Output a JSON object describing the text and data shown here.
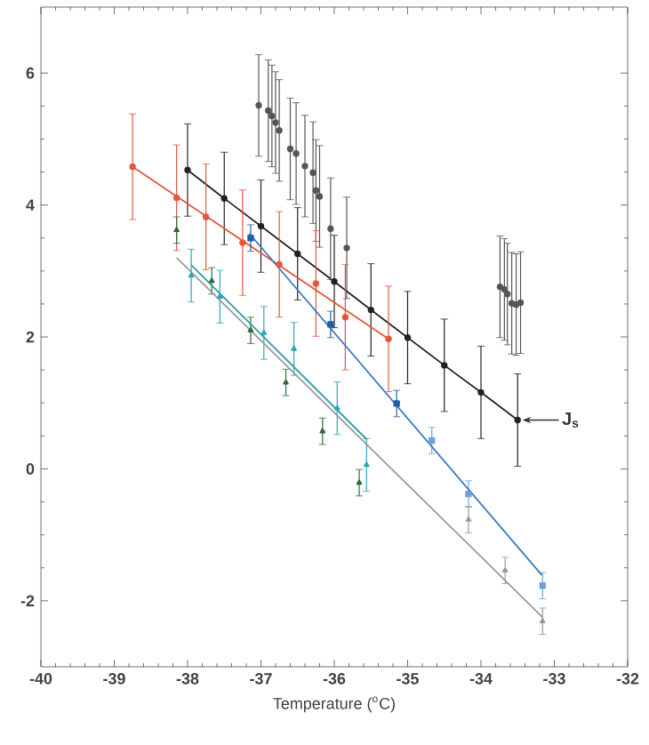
{
  "chart_data": {
    "type": "scatter",
    "xlabel": "Temperature ($^{o}$C)",
    "xlim": [
      -40,
      -32
    ],
    "xticks": [
      -40,
      -39,
      -38,
      -37,
      -36,
      -35,
      -34,
      -33,
      -32
    ],
    "ylim": [
      -3,
      7
    ],
    "yticks": [
      -2,
      0,
      2,
      4,
      6
    ],
    "line_style": "solid",
    "annotations": [
      {
        "text": "J$_{s}$",
        "x": -33.5,
        "y": 0.74
      }
    ],
    "series": [
      {
        "type": "line",
        "marker": "circle",
        "color": "#222222",
        "x": [
          -38.0,
          -37.5,
          -37.0,
          -36.5,
          -36.0,
          -35.5,
          -35.0,
          -34.5,
          -34.0,
          -33.5
        ],
        "values": [
          4.53,
          4.1,
          3.68,
          3.26,
          2.84,
          2.41,
          1.99,
          1.57,
          1.16,
          0.74
        ],
        "errors": [
          0.7,
          0.7,
          0.7,
          0.7,
          0.7,
          0.7,
          0.7,
          0.7,
          0.7,
          0.7
        ]
      },
      {
        "type": "scatter",
        "marker": "circle",
        "color": "#555555",
        "x": [
          -37.03,
          -36.9,
          -36.85,
          -36.8,
          -36.75,
          -36.6,
          -36.52,
          -36.4,
          -36.29,
          -36.25,
          -36.2,
          -36.05,
          -35.83,
          -33.74,
          -33.68,
          -33.64,
          -33.58,
          -33.52,
          -33.46
        ],
        "values": [
          5.51,
          5.43,
          5.35,
          5.25,
          5.13,
          4.85,
          4.78,
          4.59,
          4.49,
          4.22,
          4.13,
          3.64,
          3.35,
          2.76,
          2.72,
          2.65,
          2.51,
          2.49,
          2.52
        ],
        "errors": [
          0.77,
          0.77,
          0.77,
          0.77,
          0.77,
          0.77,
          0.77,
          0.77,
          0.77,
          0.77,
          0.77,
          0.77,
          0.77,
          0.77,
          0.77,
          0.77,
          0.77,
          0.77,
          0.77
        ]
      },
      {
        "type": "scatter",
        "marker": "circle",
        "color": "#e4573d",
        "x": [
          -38.75,
          -38.15,
          -37.75,
          -37.25,
          -36.75,
          -36.25,
          -35.85,
          -35.26
        ],
        "values": [
          4.58,
          4.11,
          3.82,
          3.43,
          3.1,
          2.81,
          2.3,
          1.97
        ],
        "errors": [
          0.8,
          0.8,
          0.8,
          0.8,
          0.8,
          0.8,
          0.8,
          0.8
        ]
      },
      {
        "type": "line",
        "marker": "none",
        "color": "#e4573d",
        "x": [
          -38.75,
          -35.26
        ],
        "values": [
          4.58,
          1.97
        ]
      },
      {
        "type": "scatter",
        "marker": "square",
        "color": "#1f5fa8",
        "x": [
          -37.14,
          -36.05,
          -35.15
        ],
        "values": [
          3.5,
          2.19,
          0.99
        ],
        "errors": [
          0.2,
          0.2,
          0.2
        ]
      },
      {
        "type": "scatter",
        "marker": "square",
        "color": "#6fa3d8",
        "x": [
          -34.67,
          -34.17,
          -33.16
        ],
        "values": [
          0.43,
          -0.38,
          -1.77
        ],
        "errors": [
          0.2,
          0.2,
          0.2
        ]
      },
      {
        "type": "line",
        "marker": "none",
        "color": "#3a78bf",
        "x": [
          -37.16,
          -33.17
        ],
        "values": [
          3.57,
          -1.61
        ]
      },
      {
        "type": "scatter",
        "marker": "triangle",
        "color": "#2e6b3a",
        "x": [
          -38.15,
          -37.67,
          -37.14,
          -36.66,
          -36.16,
          -35.66
        ],
        "values": [
          3.62,
          2.85,
          2.1,
          1.31,
          0.57,
          -0.21
        ],
        "errors": [
          0.2,
          0.2,
          0.2,
          0.2,
          0.2,
          0.2
        ]
      },
      {
        "type": "scatter",
        "marker": "triangle",
        "color": "#2aa7b8",
        "x": [
          -37.95,
          -37.56,
          -36.96,
          -36.55,
          -35.96,
          -35.56
        ],
        "values": [
          2.93,
          2.61,
          2.06,
          1.82,
          0.92,
          0.06
        ],
        "errors": [
          0.4,
          0.4,
          0.4,
          0.4,
          0.4,
          0.4
        ]
      },
      {
        "type": "scatter",
        "marker": "triangle",
        "color": "#9a9a9a",
        "x": [
          -34.17,
          -33.67,
          -33.16
        ],
        "values": [
          -0.77,
          -1.54,
          -2.31
        ],
        "errors": [
          0.2,
          0.2,
          0.2
        ]
      },
      {
        "type": "line",
        "marker": "none",
        "color": "#9a9a9a",
        "x": [
          -38.15,
          -33.16
        ],
        "values": [
          3.2,
          -2.25
        ]
      },
      {
        "type": "line",
        "marker": "none",
        "color": "#2aa0a8",
        "x": [
          -37.95,
          -35.56
        ],
        "values": [
          3.09,
          0.45
        ]
      }
    ]
  }
}
